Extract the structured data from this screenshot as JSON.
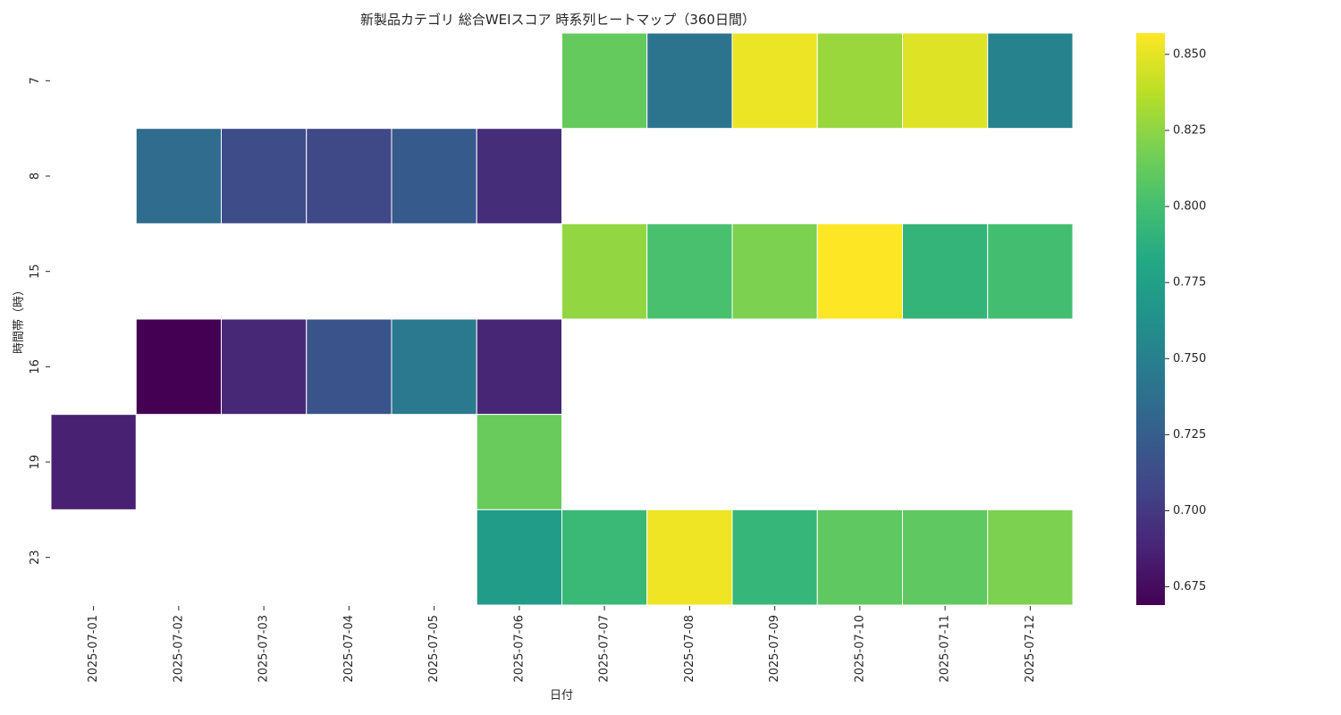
{
  "chart_data": {
    "type": "heatmap",
    "title": "新製品カテゴリ 総合WEIスコア 時系列ヒートマップ（360日間）",
    "xlabel": "日付",
    "ylabel": "時間帯（時）",
    "x": [
      "2025-07-01",
      "2025-07-02",
      "2025-07-03",
      "2025-07-04",
      "2025-07-05",
      "2025-07-06",
      "2025-07-07",
      "2025-07-08",
      "2025-07-09",
      "2025-07-10",
      "2025-07-11",
      "2025-07-12"
    ],
    "y": [
      "7",
      "8",
      "15",
      "16",
      "19",
      "23"
    ],
    "values": [
      [
        null,
        null,
        null,
        null,
        null,
        null,
        0.812,
        0.741,
        0.852,
        0.828,
        0.848,
        0.752
      ],
      [
        null,
        0.735,
        0.712,
        0.71,
        0.722,
        0.693,
        null,
        null,
        null,
        null,
        null,
        null
      ],
      [
        null,
        null,
        null,
        null,
        null,
        null,
        0.826,
        0.802,
        0.82,
        0.857,
        0.792,
        0.8
      ],
      [
        null,
        0.669,
        0.69,
        0.718,
        0.745,
        0.689,
        null,
        null,
        null,
        null,
        null,
        null
      ],
      [
        0.686,
        null,
        null,
        null,
        null,
        0.813,
        null,
        null,
        null,
        null,
        null,
        null
      ],
      [
        null,
        null,
        null,
        null,
        null,
        0.772,
        0.795,
        0.853,
        0.793,
        0.81,
        0.81,
        0.82
      ]
    ],
    "colormap": "viridis",
    "color_range": [
      0.669,
      0.857
    ],
    "colorbar_ticks": [
      0.675,
      0.7,
      0.725,
      0.75,
      0.775,
      0.8,
      0.825,
      0.85
    ],
    "colorbar_tick_labels": [
      "0.675",
      "0.700",
      "0.725",
      "0.750",
      "0.775",
      "0.800",
      "0.825",
      "0.850"
    ],
    "missing_color": "#ffffff",
    "grid": false
  }
}
